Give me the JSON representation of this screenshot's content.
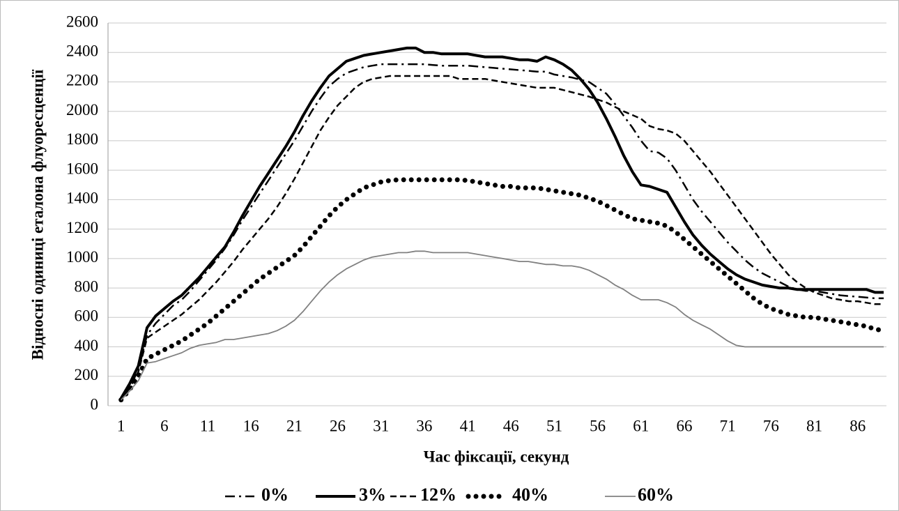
{
  "chart_data": {
    "type": "line",
    "x_label": "Час фіксації, секунд",
    "y_label": "Відносні одиниці еталона флуоресценції",
    "x": [
      1,
      2,
      3,
      4,
      5,
      6,
      7,
      8,
      9,
      10,
      11,
      12,
      13,
      14,
      15,
      16,
      17,
      18,
      19,
      20,
      21,
      22,
      23,
      24,
      25,
      26,
      27,
      28,
      29,
      30,
      31,
      32,
      33,
      34,
      35,
      36,
      37,
      38,
      39,
      40,
      41,
      42,
      43,
      44,
      45,
      46,
      47,
      48,
      49,
      50,
      51,
      52,
      53,
      54,
      55,
      56,
      57,
      58,
      59,
      60,
      61,
      62,
      63,
      64,
      65,
      66,
      67,
      68,
      69,
      70,
      71,
      72,
      73,
      74,
      75,
      76,
      77,
      78,
      79,
      80,
      81,
      82,
      83,
      84,
      85,
      86,
      87,
      88,
      89
    ],
    "xlim": [
      -0.5,
      89
    ],
    "xticks": [
      1,
      6,
      11,
      16,
      21,
      26,
      31,
      36,
      41,
      46,
      51,
      56,
      61,
      66,
      71,
      76,
      81,
      86
    ],
    "ylim": [
      0,
      2600
    ],
    "yticks": [
      0,
      200,
      400,
      600,
      800,
      1000,
      1200,
      1400,
      1600,
      1800,
      2000,
      2200,
      2400,
      2600
    ],
    "grid": true,
    "legend": "bottom",
    "series": [
      {
        "name": "0%",
        "color": "#000000",
        "style": "dash-dot",
        "values": [
          40,
          130,
          240,
          480,
          560,
          620,
          680,
          720,
          780,
          850,
          920,
          990,
          1070,
          1160,
          1260,
          1350,
          1440,
          1530,
          1620,
          1710,
          1800,
          1900,
          2000,
          2090,
          2170,
          2220,
          2260,
          2280,
          2300,
          2310,
          2320,
          2320,
          2320,
          2320,
          2320,
          2320,
          2315,
          2310,
          2310,
          2310,
          2310,
          2305,
          2300,
          2295,
          2290,
          2285,
          2280,
          2275,
          2270,
          2270,
          2250,
          2240,
          2230,
          2215,
          2200,
          2160,
          2120,
          2050,
          1970,
          1890,
          1800,
          1730,
          1720,
          1680,
          1600,
          1500,
          1400,
          1320,
          1250,
          1180,
          1110,
          1050,
          990,
          940,
          900,
          870,
          840,
          810,
          790,
          780,
          780,
          770,
          760,
          750,
          745,
          740,
          735,
          730,
          730
        ]
      },
      {
        "name": "3%",
        "color": "#000000",
        "style": "solid-thick",
        "values": [
          50,
          150,
          270,
          530,
          610,
          660,
          710,
          750,
          810,
          870,
          940,
          1010,
          1080,
          1180,
          1290,
          1390,
          1490,
          1580,
          1670,
          1760,
          1860,
          1970,
          2070,
          2160,
          2240,
          2290,
          2340,
          2360,
          2380,
          2390,
          2400,
          2410,
          2420,
          2430,
          2430,
          2400,
          2400,
          2390,
          2390,
          2390,
          2390,
          2380,
          2370,
          2370,
          2370,
          2360,
          2350,
          2350,
          2340,
          2370,
          2350,
          2320,
          2280,
          2220,
          2150,
          2060,
          1950,
          1830,
          1700,
          1590,
          1500,
          1490,
          1470,
          1450,
          1350,
          1250,
          1160,
          1090,
          1030,
          980,
          930,
          890,
          860,
          840,
          820,
          810,
          800,
          800,
          790,
          790,
          790,
          790,
          790,
          790,
          790,
          790,
          790,
          770,
          770
        ]
      },
      {
        "name": "12%",
        "color": "#000000",
        "style": "dashed",
        "values": [
          40,
          120,
          230,
          460,
          500,
          540,
          580,
          620,
          670,
          720,
          780,
          840,
          910,
          980,
          1060,
          1130,
          1200,
          1270,
          1350,
          1440,
          1540,
          1650,
          1760,
          1870,
          1960,
          2040,
          2100,
          2160,
          2200,
          2220,
          2230,
          2240,
          2240,
          2240,
          2240,
          2240,
          2240,
          2240,
          2240,
          2220,
          2220,
          2220,
          2220,
          2210,
          2200,
          2190,
          2180,
          2170,
          2160,
          2160,
          2160,
          2145,
          2130,
          2115,
          2100,
          2080,
          2060,
          2030,
          2000,
          1975,
          1950,
          1900,
          1880,
          1870,
          1850,
          1800,
          1730,
          1660,
          1590,
          1510,
          1430,
          1350,
          1270,
          1190,
          1110,
          1030,
          960,
          890,
          840,
          800,
          770,
          750,
          730,
          720,
          710,
          710,
          700,
          690,
          690
        ]
      },
      {
        "name": "40%",
        "color": "#000000",
        "style": "dotted",
        "values": [
          40,
          110,
          200,
          320,
          350,
          380,
          410,
          440,
          480,
          520,
          560,
          610,
          660,
          710,
          760,
          810,
          860,
          900,
          940,
          980,
          1020,
          1080,
          1150,
          1220,
          1290,
          1350,
          1400,
          1440,
          1480,
          1500,
          1520,
          1530,
          1535,
          1535,
          1535,
          1535,
          1535,
          1535,
          1535,
          1535,
          1530,
          1520,
          1510,
          1500,
          1490,
          1490,
          1480,
          1480,
          1480,
          1470,
          1460,
          1450,
          1440,
          1430,
          1410,
          1390,
          1360,
          1330,
          1300,
          1270,
          1260,
          1250,
          1240,
          1220,
          1180,
          1130,
          1080,
          1030,
          980,
          930,
          880,
          830,
          780,
          730,
          690,
          660,
          640,
          620,
          610,
          600,
          600,
          590,
          580,
          570,
          560,
          550,
          540,
          520,
          510
        ]
      },
      {
        "name": "60%",
        "color": "#808080",
        "style": "solid-thin",
        "values": [
          40,
          100,
          170,
          290,
          300,
          320,
          340,
          360,
          390,
          410,
          420,
          430,
          450,
          450,
          460,
          470,
          480,
          490,
          510,
          540,
          580,
          640,
          710,
          780,
          840,
          890,
          930,
          960,
          990,
          1010,
          1020,
          1030,
          1040,
          1040,
          1050,
          1050,
          1040,
          1040,
          1040,
          1040,
          1040,
          1030,
          1020,
          1010,
          1000,
          990,
          980,
          980,
          970,
          960,
          960,
          950,
          950,
          940,
          920,
          890,
          860,
          820,
          790,
          750,
          720,
          720,
          720,
          700,
          670,
          620,
          580,
          550,
          520,
          480,
          440,
          410,
          400,
          400,
          400,
          400,
          400,
          400,
          400,
          400,
          400,
          400,
          400,
          400,
          400,
          400,
          400,
          400,
          400
        ]
      }
    ]
  }
}
